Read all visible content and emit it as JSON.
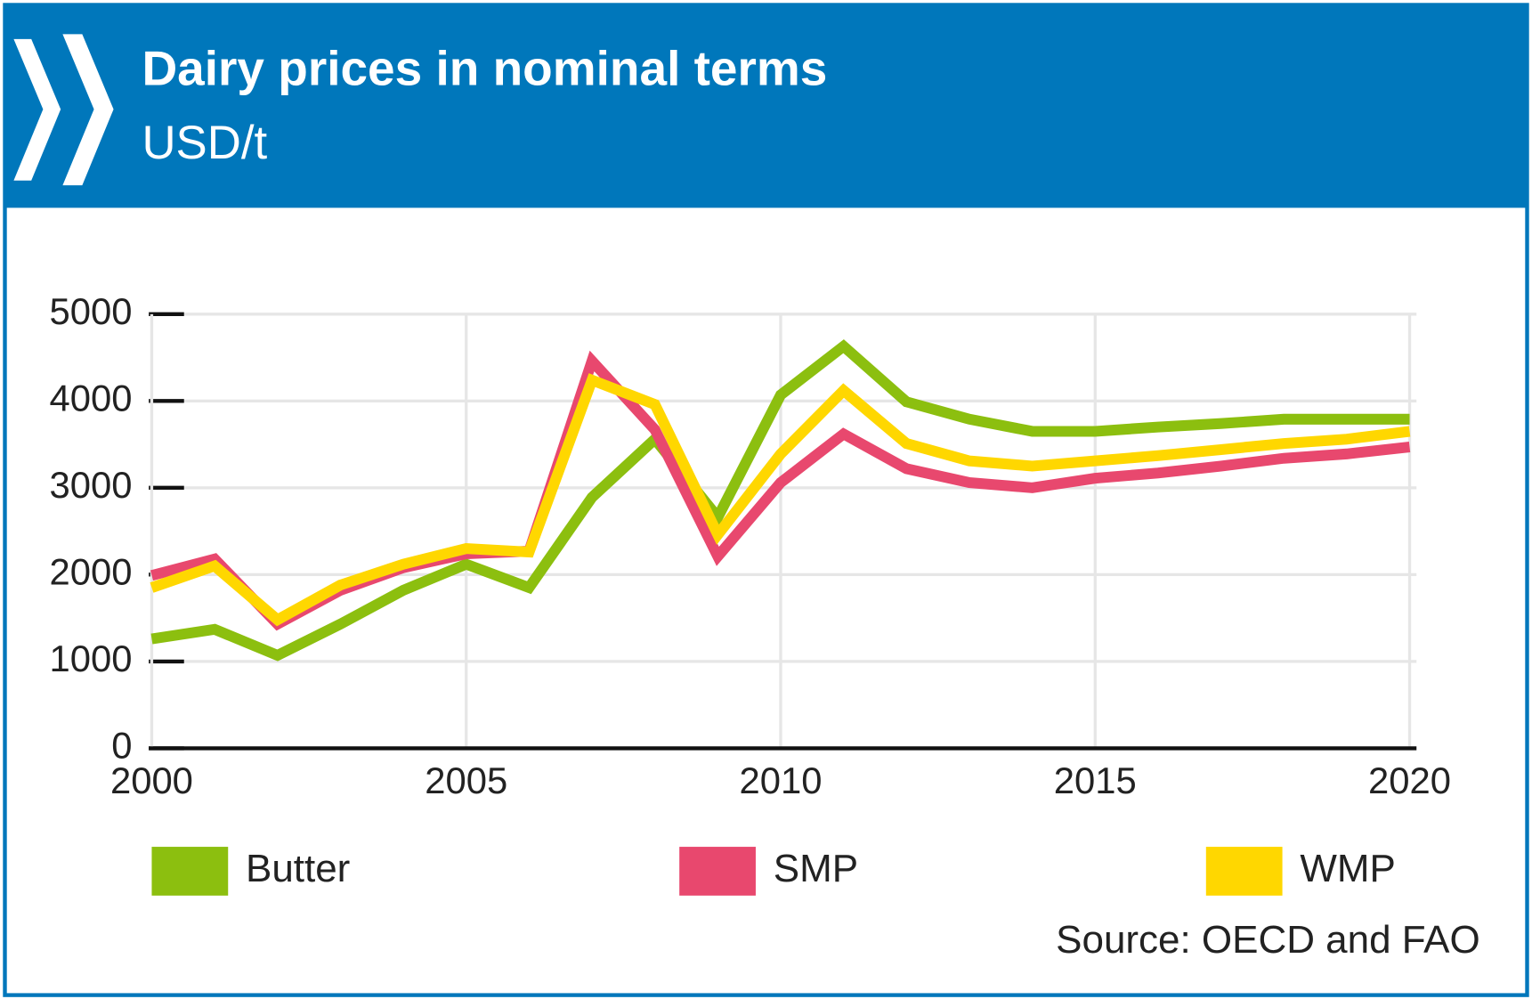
{
  "chart_data": {
    "type": "line",
    "title": "Dairy prices in nominal terms",
    "subtitle": "USD/t",
    "source": "Source: OECD and FAO",
    "x": [
      2000,
      2001,
      2002,
      2003,
      2004,
      2005,
      2006,
      2007,
      2008,
      2009,
      2010,
      2011,
      2012,
      2013,
      2014,
      2015,
      2016,
      2017,
      2018,
      2019,
      2020
    ],
    "series": [
      {
        "name": "Butter",
        "color": "#8cbf0f",
        "values": [
          1260,
          1370,
          1070,
          1430,
          1820,
          2120,
          1850,
          2890,
          3560,
          2660,
          4070,
          4630,
          3990,
          3790,
          3650,
          3650,
          3700,
          3740,
          3790,
          3790,
          3790
        ]
      },
      {
        "name": "SMP",
        "color": "#e8486e",
        "values": [
          1990,
          2180,
          1430,
          1820,
          2080,
          2240,
          2270,
          4460,
          3670,
          2210,
          3060,
          3620,
          3220,
          3060,
          3000,
          3110,
          3170,
          3250,
          3340,
          3390,
          3470
        ]
      },
      {
        "name": "WMP",
        "color": "#ffd700",
        "values": [
          1850,
          2100,
          1480,
          1880,
          2120,
          2300,
          2260,
          4240,
          3960,
          2460,
          3390,
          4120,
          3510,
          3310,
          3250,
          3310,
          3370,
          3440,
          3510,
          3560,
          3650
        ]
      }
    ],
    "xlim": [
      2000,
      2020
    ],
    "xticks": [
      2000,
      2005,
      2010,
      2015,
      2020
    ],
    "ylim": [
      0,
      5000
    ],
    "yticks": [
      0,
      1000,
      2000,
      3000,
      4000,
      5000
    ],
    "grid": true
  }
}
